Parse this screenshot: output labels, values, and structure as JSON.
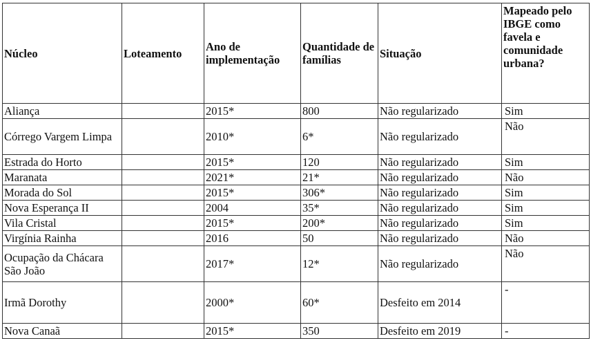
{
  "table": {
    "headers": [
      "Núcleo",
      "Loteamento",
      "Ano de implementação",
      "Quantidade de famílias",
      "Situação",
      "Mapeado pelo IBGE como favela e comunidade urbana?"
    ],
    "rows": [
      {
        "nucleo": "Aliança",
        "loteamento": "",
        "ano": "2015*",
        "familias": "800",
        "situacao": "Não regularizado",
        "mapeado": "Sim"
      },
      {
        "nucleo": "Córrego Vargem Limpa",
        "loteamento": "",
        "ano": "2010*",
        "familias": "6*",
        "situacao": "Não regularizado",
        "mapeado": "Não"
      },
      {
        "nucleo": "Estrada do Horto",
        "loteamento": "",
        "ano": "2015*",
        "familias": "120",
        "situacao": "Não regularizado",
        "mapeado": "Sim"
      },
      {
        "nucleo": "Maranata",
        "loteamento": "",
        "ano": "2021*",
        "familias": "21*",
        "situacao": "Não regularizado",
        "mapeado": "Não"
      },
      {
        "nucleo": "Morada do Sol",
        "loteamento": "",
        "ano": "2015*",
        "familias": "306*",
        "situacao": "Não regularizado",
        "mapeado": "Sim"
      },
      {
        "nucleo": "Nova Esperança II",
        "loteamento": "",
        "ano": "2004",
        "familias": "35*",
        "situacao": "Não regularizado",
        "mapeado": "Sim"
      },
      {
        "nucleo": "Vila Cristal",
        "loteamento": "",
        "ano": "2015*",
        "familias": "200*",
        "situacao": "Não regularizado",
        "mapeado": "Sim"
      },
      {
        "nucleo": "Virgínia Rainha",
        "loteamento": "",
        "ano": "2016",
        "familias": "50",
        "situacao": "Não regularizado",
        "mapeado": "Não"
      },
      {
        "nucleo": "Ocupação da Chácara São João",
        "loteamento": "",
        "ano": "2017*",
        "familias": "12*",
        "situacao": "Não regularizado",
        "mapeado": "Não"
      },
      {
        "nucleo": "Irmã Dorothy",
        "loteamento": "",
        "ano": "2000*",
        "familias": "60*",
        "situacao": "Desfeito em 2014",
        "mapeado": "-"
      },
      {
        "nucleo": "Nova Canaã",
        "loteamento": "",
        "ano": "2015*",
        "familias": "350",
        "situacao": "Desfeito em 2019",
        "mapeado": "-"
      }
    ]
  }
}
